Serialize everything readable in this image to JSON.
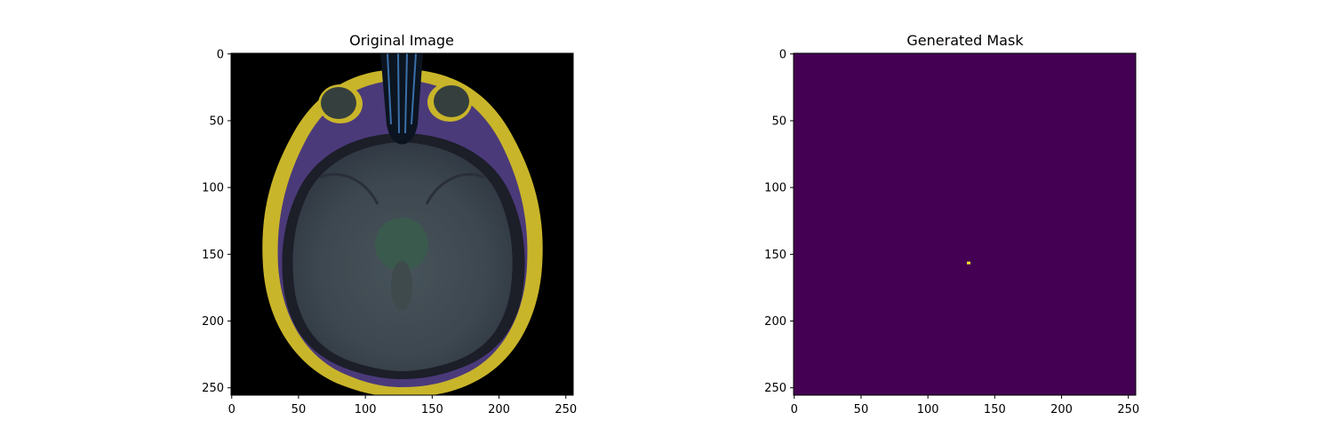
{
  "panels": [
    {
      "title": "Original Image",
      "x_ticks": [
        "0",
        "50",
        "100",
        "150",
        "200",
        "250"
      ],
      "y_ticks": [
        "0",
        "50",
        "100",
        "150",
        "200",
        "250"
      ]
    },
    {
      "title": "Generated Mask",
      "x_ticks": [
        "0",
        "50",
        "100",
        "150",
        "200",
        "250"
      ],
      "y_ticks": [
        "0",
        "50",
        "100",
        "150",
        "200",
        "250"
      ]
    }
  ],
  "colors": {
    "image_background": "#000000",
    "mask_background": "#440154",
    "mask_highlight": "#fde725",
    "skull_yellow": "#c7b424",
    "skull_purple": "#5a3f8a",
    "brain_tissue": "#3e4a52"
  },
  "mask_spot": {
    "x": 131,
    "y": 157
  }
}
